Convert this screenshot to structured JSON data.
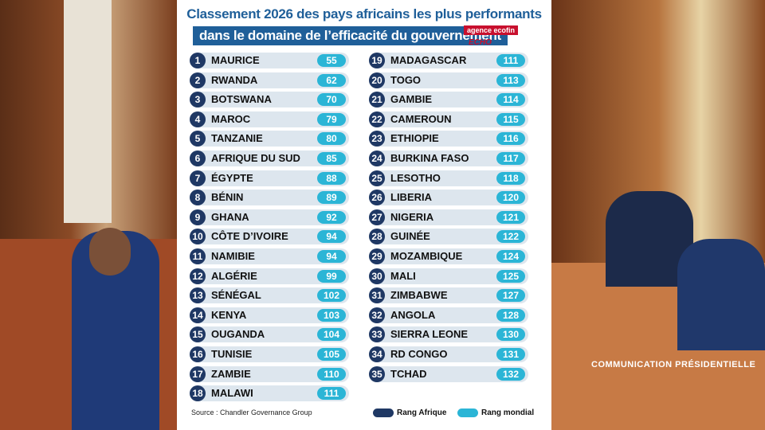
{
  "header": {
    "title_line1": "Classement 2026 des pays africains les plus performants",
    "title_line2": "dans le domaine de l’efficacité du gouvernement",
    "logo_ecofin": "agence ecofin",
    "logo_echo": "ECHO"
  },
  "rankings": [
    [
      1,
      "MAURICE",
      55
    ],
    [
      2,
      "RWANDA",
      62
    ],
    [
      3,
      "BOTSWANA",
      70
    ],
    [
      4,
      "MAROC",
      79
    ],
    [
      5,
      "TANZANIE",
      80
    ],
    [
      6,
      "AFRIQUE DU SUD",
      85
    ],
    [
      7,
      "ÉGYPTE",
      88
    ],
    [
      8,
      "BÉNIN",
      89
    ],
    [
      9,
      "GHANA",
      92
    ],
    [
      10,
      "CÔTE D’IVOIRE",
      94
    ],
    [
      11,
      "NAMIBIE",
      94
    ],
    [
      12,
      "ALGÉRIE",
      99
    ],
    [
      13,
      "SÉNÉGAL",
      102
    ],
    [
      14,
      "KENYA",
      103
    ],
    [
      15,
      "OUGANDA",
      104
    ],
    [
      16,
      "TUNISIE",
      105
    ],
    [
      17,
      "ZAMBIE",
      110
    ],
    [
      18,
      "MALAWI",
      111
    ],
    [
      19,
      "MADAGASCAR",
      111
    ],
    [
      20,
      "TOGO",
      113
    ],
    [
      21,
      "GAMBIE",
      114
    ],
    [
      22,
      "CAMEROUN",
      115
    ],
    [
      23,
      "ETHIOPIE",
      116
    ],
    [
      24,
      "BURKINA FASO",
      117
    ],
    [
      25,
      "LESOTHO",
      118
    ],
    [
      26,
      "LIBERIA",
      120
    ],
    [
      27,
      "NIGERIA",
      121
    ],
    [
      28,
      "GUINÉE",
      122
    ],
    [
      29,
      "MOZAMBIQUE",
      124
    ],
    [
      30,
      "MALI",
      125
    ],
    [
      31,
      "ZIMBABWE",
      127
    ],
    [
      32,
      "ANGOLA",
      128
    ],
    [
      33,
      "SIERRA LEONE",
      130
    ],
    [
      34,
      "RD CONGO",
      131
    ],
    [
      35,
      "TCHAD",
      132
    ]
  ],
  "source": "Source : Chandler Governance Group",
  "legend": {
    "africa": "Rang Afrique",
    "world": "Rang mondial"
  },
  "watermark": "COMMUNICATION PRÉSIDENTIELLE"
}
